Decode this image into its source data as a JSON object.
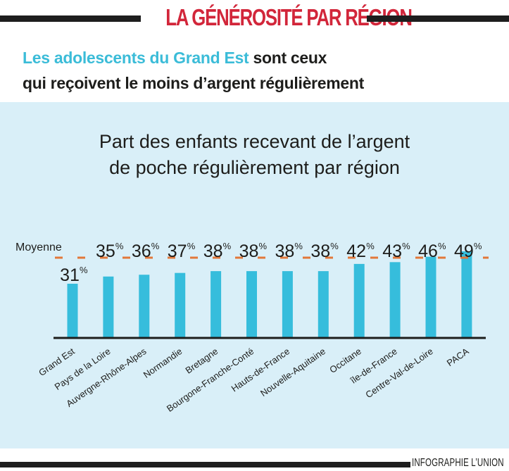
{
  "header": {
    "kicker": "LA GÉNÉROSITÉ PAR RÉGION",
    "kicker_color": "#d2263a",
    "headline_highlight": "Les adolescents du Grand Est",
    "headline_rest_line1": " sont ceux",
    "headline_line2": "qui reçoivent le moins d’argent régulièrement",
    "highlight_color": "#3bbcd8"
  },
  "chart_data": {
    "type": "bar",
    "title_line1": "Part des enfants recevant de l’argent",
    "title_line2": "de poche régulièrement par région",
    "categories": [
      "Grand Est",
      "Pays de la Loire",
      "Auvergne-Rhône-Alpes",
      "Normandie",
      "Bretagne",
      "Bourgone-Franche-Conté",
      "Hauts-de-France",
      "Nouvelle-Aquitaine",
      "Occitane",
      "île-de-France",
      "Centre-Val-de-Loire",
      "PACA"
    ],
    "values": [
      31,
      35,
      36,
      37,
      38,
      38,
      38,
      38,
      42,
      43,
      46,
      49
    ],
    "data_labels": [
      "31",
      "35",
      "36",
      "37",
      "38",
      "38",
      "38",
      "38",
      "42",
      "43",
      "46",
      "49"
    ],
    "unit_label": "%",
    "reference_line": {
      "label": "Moyenne",
      "value": 48
    },
    "xlabel": "",
    "ylabel": "",
    "ylim": [
      0,
      50
    ],
    "grid": false,
    "legend": "none",
    "colors": {
      "bar": "#36bddc",
      "reference_line": "#e2783a",
      "axis": "#1d1d1b",
      "background": "#d9eff8"
    }
  },
  "footer": {
    "credit": "INFOGRAPHIE L’UNION"
  }
}
